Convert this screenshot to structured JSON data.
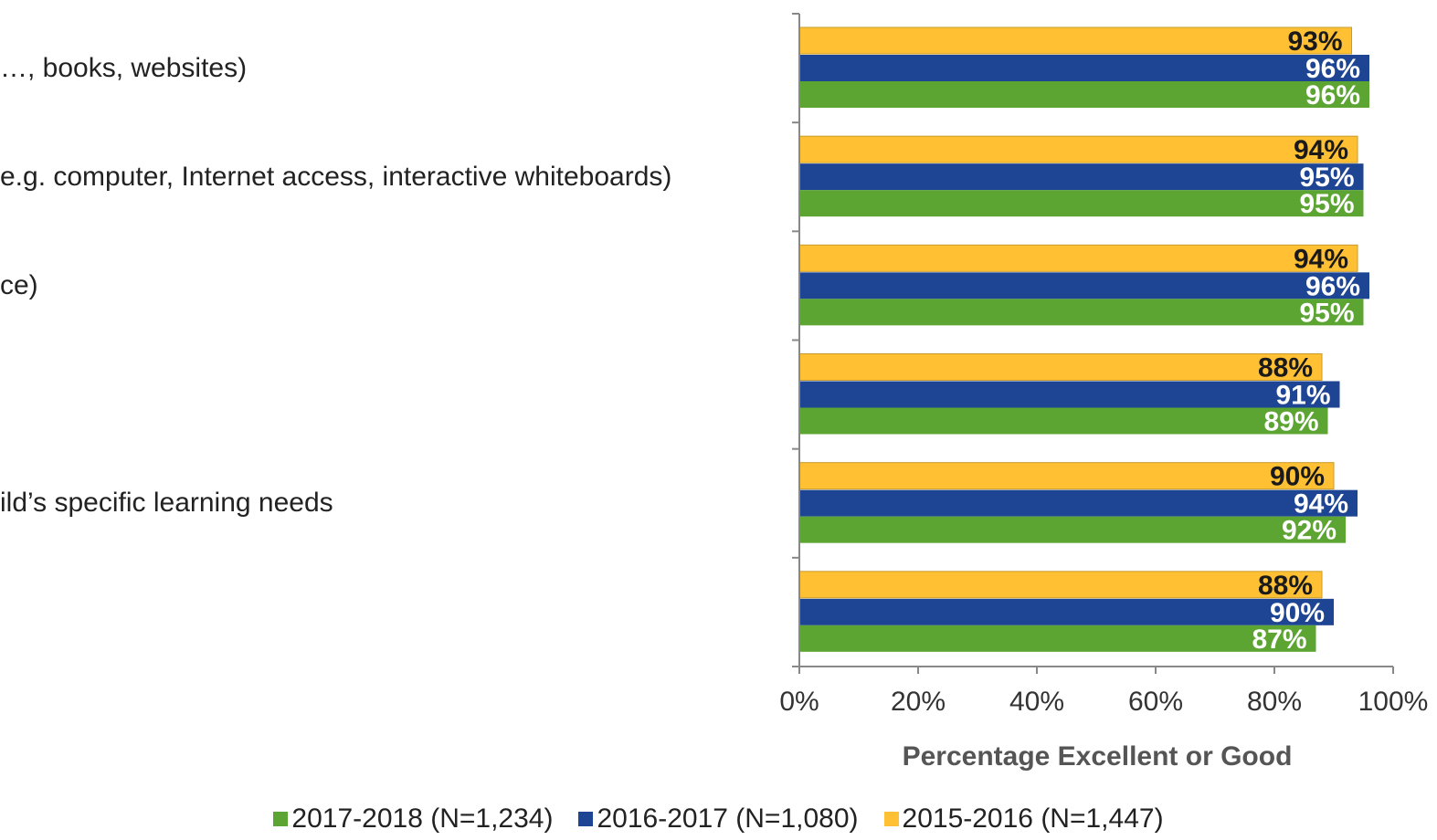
{
  "chart_data": {
    "type": "bar",
    "orientation": "horizontal",
    "categories": [
      "…, books, websites)",
      "e.g. computer, Internet access, interactive whiteboards)",
      "ce)",
      "",
      "ild’s specific learning needs",
      ""
    ],
    "series": [
      {
        "name": "2015-2016 (N=1,447)",
        "color": "#FFC133",
        "label_color": "#1a1a1a",
        "values": [
          93,
          94,
          94,
          88,
          90,
          88
        ]
      },
      {
        "name": "2016-2017 (N=1,080)",
        "color": "#1D4593",
        "label_color": "#ffffff",
        "values": [
          96,
          95,
          96,
          91,
          94,
          90
        ]
      },
      {
        "name": "2017-2018 (N=1,234)",
        "color": "#5CA533",
        "label_color": "#ffffff",
        "values": [
          96,
          95,
          95,
          89,
          92,
          87
        ]
      }
    ],
    "xlabel": "Percentage Excellent or Good",
    "xlim": [
      0,
      100
    ],
    "xticks": [
      "0%",
      "20%",
      "40%",
      "60%",
      "80%",
      "100%"
    ],
    "legend": {
      "placement": "bottom",
      "order": [
        "2017-2018 (N=1,234)",
        "2016-2017 (N=1,080)",
        "2015-2016 (N=1,447)"
      ]
    }
  }
}
